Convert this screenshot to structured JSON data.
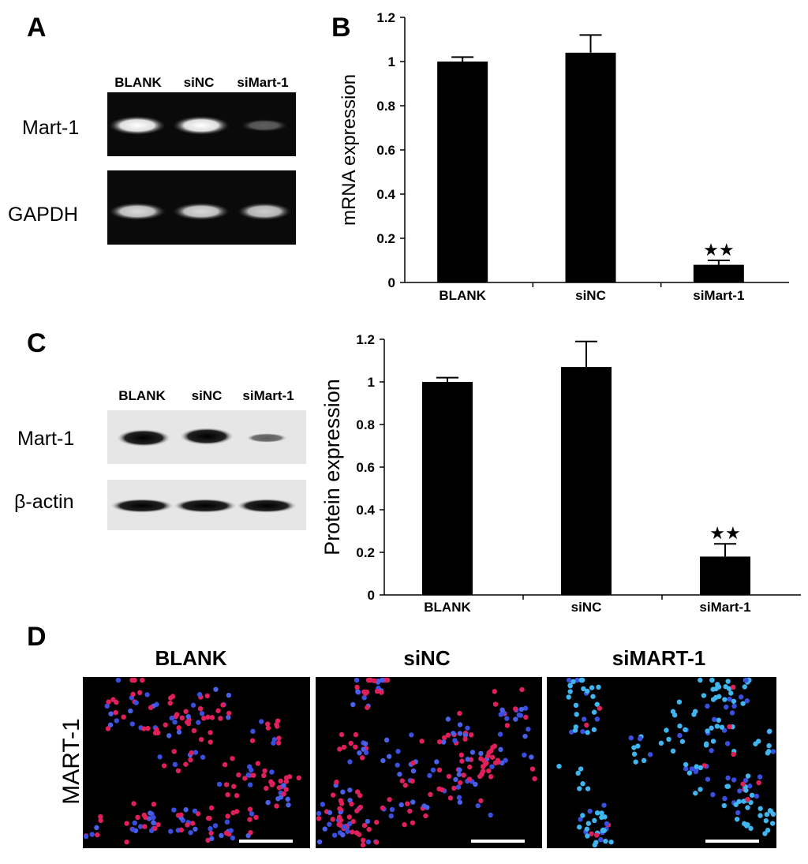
{
  "panel_labels": [
    "A",
    "B",
    "C",
    "D"
  ],
  "gel_a": {
    "lanes": [
      "BLANK",
      "siNC",
      "siMart-1"
    ],
    "rows": [
      "Mart-1",
      "GAPDH"
    ]
  },
  "blot_c": {
    "lanes": [
      "BLANK",
      "siNC",
      "siMart-1"
    ],
    "rows": [
      "Mart-1",
      "β-actin"
    ]
  },
  "microscopy_d": {
    "columns": [
      "BLANK",
      "siNC",
      "siMART-1"
    ],
    "row_label": "MART-1"
  },
  "chart_data": [
    {
      "type": "bar",
      "y_label": "mRNA expression",
      "categories": [
        "BLANK",
        "siNC",
        "siMart-1"
      ],
      "values": [
        1.0,
        1.04,
        0.08
      ],
      "errors": [
        0.02,
        0.08,
        0.02
      ],
      "color": "#000000",
      "ylim": [
        0,
        1.2
      ],
      "yticks": [
        0,
        0.2,
        0.4,
        0.6,
        0.8,
        1,
        1.2
      ],
      "annotation": "★★"
    },
    {
      "type": "bar",
      "y_label": "Protein expression",
      "categories": [
        "BLANK",
        "siNC",
        "siMart-1"
      ],
      "values": [
        1.0,
        1.07,
        0.18
      ],
      "errors": [
        0.02,
        0.12,
        0.06
      ],
      "color": "#000000",
      "ylim": [
        0,
        1.2
      ],
      "yticks": [
        0,
        0.2,
        0.4,
        0.6,
        0.8,
        1,
        1.2
      ],
      "annotation": "★★"
    }
  ]
}
